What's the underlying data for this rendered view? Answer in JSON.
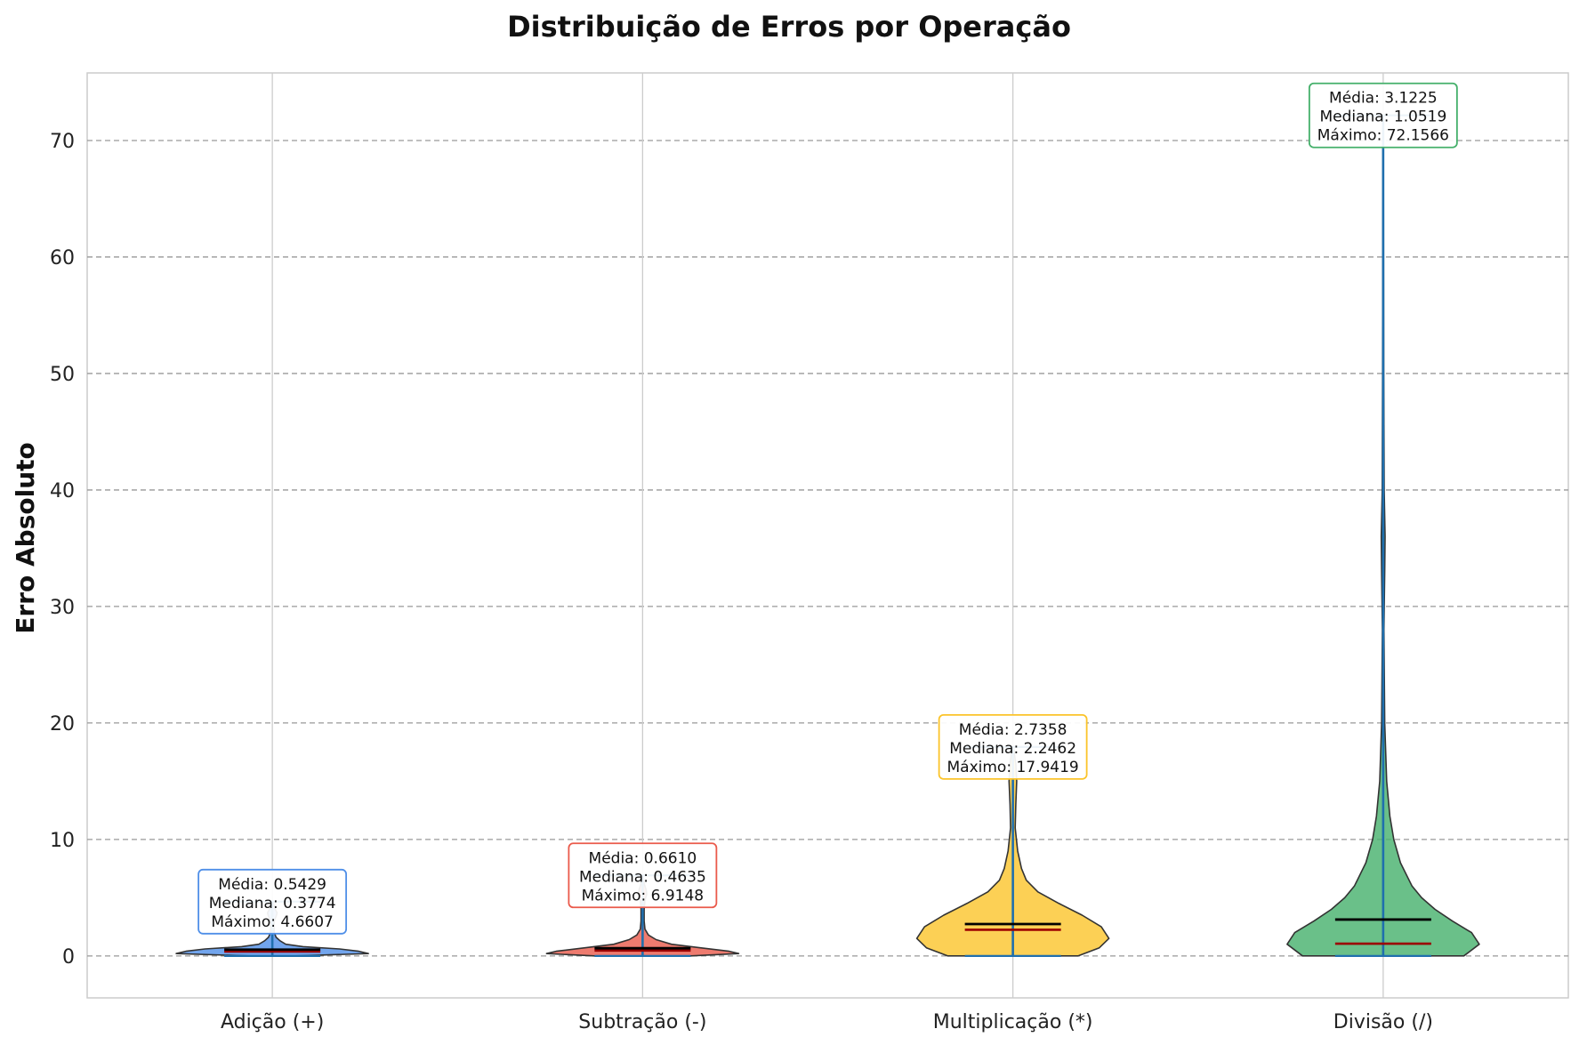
{
  "chart_data": {
    "type": "violin",
    "title": "Distribuição de Erros por Operação",
    "xlabel": "",
    "ylabel": "Erro Absoluto",
    "ylim": [
      -3.6,
      75.8
    ],
    "yticks": [
      0,
      10,
      20,
      30,
      40,
      50,
      60,
      70
    ],
    "grid": true,
    "categories": [
      "Adição (+)",
      "Subtração (-)",
      "Multiplicação (*)",
      "Divisão (/)"
    ],
    "colors": {
      "body_fills": [
        "#4f8fe8",
        "#ea5a4b",
        "#fbc42a",
        "#45b06b"
      ],
      "annotation_borders": [
        "#4f8fe8",
        "#ea5a4b",
        "#fbc42a",
        "#45b06b"
      ],
      "extrema_line": "#1f6fae",
      "mean_line": "#000000",
      "median_line": "#9b0000",
      "body_edge": "#333333",
      "grid": "#999999"
    },
    "series": [
      {
        "name": "Adição (+)",
        "mean": 0.5429,
        "median": 0.3774,
        "max": 4.6607,
        "min": 0,
        "mean_label": "Média: 0.5429",
        "median_label": "Mediana: 0.3774",
        "max_label": "Máximo: 4.6607",
        "density_width": [
          [
            0,
            0.12
          ],
          [
            0.2,
            0.5
          ],
          [
            0.4,
            0.45
          ],
          [
            0.6,
            0.35
          ],
          [
            0.8,
            0.16
          ],
          [
            1.0,
            0.07
          ],
          [
            1.3,
            0.04
          ],
          [
            1.6,
            0.02
          ],
          [
            2.0,
            0.01
          ],
          [
            2.5,
            0.008
          ],
          [
            3.0,
            0.01
          ],
          [
            3.4,
            0.02
          ],
          [
            3.7,
            0.025
          ],
          [
            4.0,
            0.015
          ],
          [
            4.66,
            0.003
          ]
        ]
      },
      {
        "name": "Subtração (-)",
        "mean": 0.661,
        "median": 0.4635,
        "max": 6.9148,
        "min": 0,
        "mean_label": "Média: 0.6610",
        "median_label": "Mediana: 0.4635",
        "max_label": "Máximo: 6.9148",
        "density_width": [
          [
            0,
            0.25
          ],
          [
            0.2,
            0.5
          ],
          [
            0.4,
            0.45
          ],
          [
            0.7,
            0.3
          ],
          [
            1.0,
            0.15
          ],
          [
            1.4,
            0.07
          ],
          [
            1.8,
            0.03
          ],
          [
            2.3,
            0.012
          ],
          [
            3.0,
            0.008
          ],
          [
            4.0,
            0.008
          ],
          [
            4.8,
            0.012
          ],
          [
            5.3,
            0.022
          ],
          [
            5.7,
            0.018
          ],
          [
            6.2,
            0.008
          ],
          [
            6.91,
            0.003
          ]
        ]
      },
      {
        "name": "Multiplicação (*)",
        "mean": 2.7358,
        "median": 2.2462,
        "max": 17.9419,
        "min": 0,
        "mean_label": "Média: 2.7358",
        "median_label": "Mediana: 2.2462",
        "max_label": "Máximo: 17.9419",
        "density_width": [
          [
            0,
            0.34
          ],
          [
            0.7,
            0.45
          ],
          [
            1.5,
            0.5
          ],
          [
            2.5,
            0.46
          ],
          [
            3.5,
            0.36
          ],
          [
            4.5,
            0.24
          ],
          [
            5.5,
            0.13
          ],
          [
            6.5,
            0.07
          ],
          [
            7.5,
            0.045
          ],
          [
            9.0,
            0.025
          ],
          [
            11.0,
            0.012
          ],
          [
            13.0,
            0.015
          ],
          [
            15.0,
            0.02
          ],
          [
            16.5,
            0.015
          ],
          [
            17.94,
            0.003
          ]
        ]
      },
      {
        "name": "Divisão (/)",
        "mean": 3.1225,
        "median": 1.0519,
        "max": 72.1566,
        "min": 0,
        "mean_label": "Média: 3.1225",
        "median_label": "Mediana: 1.0519",
        "max_label": "Máximo: 72.1566",
        "density_width": [
          [
            0,
            0.42
          ],
          [
            1.0,
            0.5
          ],
          [
            2.0,
            0.46
          ],
          [
            3.0,
            0.36
          ],
          [
            4.0,
            0.27
          ],
          [
            5.0,
            0.2
          ],
          [
            6.0,
            0.15
          ],
          [
            8.0,
            0.09
          ],
          [
            10.0,
            0.055
          ],
          [
            12.0,
            0.035
          ],
          [
            15.0,
            0.018
          ],
          [
            20.0,
            0.008
          ],
          [
            28.0,
            0.004
          ],
          [
            33.0,
            0.008
          ],
          [
            36.0,
            0.01
          ],
          [
            40.0,
            0.005
          ],
          [
            50.0,
            0.003
          ],
          [
            60.0,
            0.002
          ],
          [
            72.16,
            0.001
          ]
        ]
      }
    ]
  }
}
